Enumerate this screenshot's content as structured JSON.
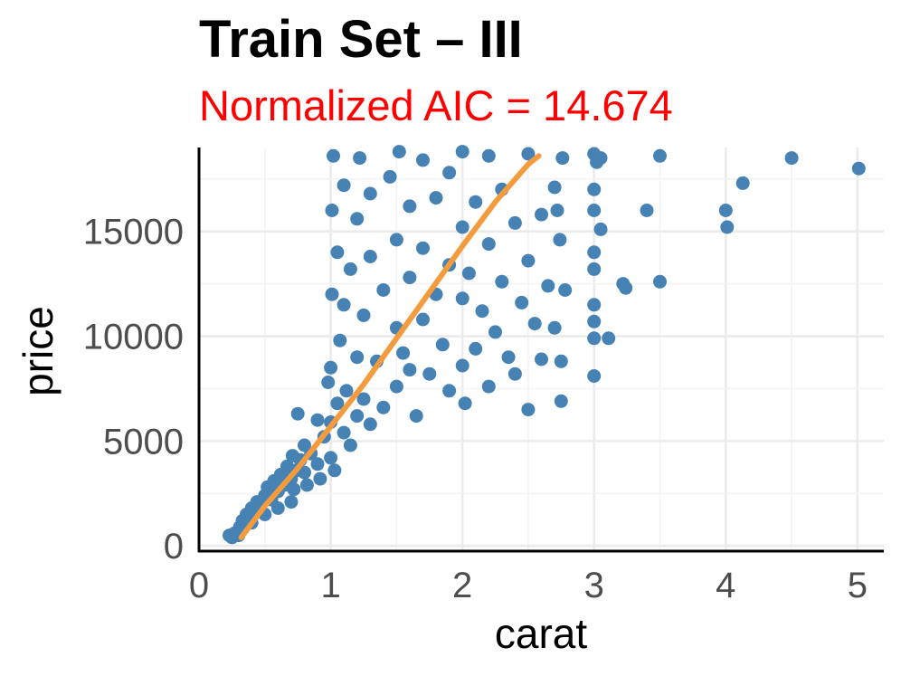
{
  "chart_data": {
    "type": "scatter",
    "title": "Train Set – III",
    "subtitle": "Normalized AIC = 14.674",
    "xlabel": "carat",
    "ylabel": "price",
    "xlim": [
      0,
      5.2
    ],
    "ylim": [
      -250,
      19000
    ],
    "x_ticks": [
      0,
      1,
      2,
      3,
      4,
      5
    ],
    "x_tick_labels": [
      "0",
      "1",
      "2",
      "3",
      "4",
      "5"
    ],
    "y_ticks": [
      0,
      5000,
      10000,
      15000
    ],
    "y_tick_labels": [
      "0",
      "5000",
      "10000",
      "15000"
    ],
    "grid": true,
    "legend": "none",
    "colors": {
      "points": "#4682b4",
      "fit_line": "#f39b3d",
      "subtitle": "#ff0000"
    },
    "fit_line": {
      "x": [
        0.32,
        0.5,
        0.75,
        1.0,
        1.25,
        1.5,
        1.75,
        2.0,
        2.25,
        2.5,
        2.58
      ],
      "y": [
        400,
        1900,
        3700,
        5700,
        7700,
        9900,
        12100,
        14300,
        16400,
        18200,
        18600
      ]
    },
    "points": [
      [
        0.23,
        500
      ],
      [
        0.25,
        400
      ],
      [
        0.27,
        600
      ],
      [
        0.3,
        700
      ],
      [
        0.3,
        500
      ],
      [
        0.31,
        900
      ],
      [
        0.32,
        800
      ],
      [
        0.33,
        1200
      ],
      [
        0.35,
        1000
      ],
      [
        0.36,
        1500
      ],
      [
        0.38,
        1300
      ],
      [
        0.4,
        1100
      ],
      [
        0.4,
        1800
      ],
      [
        0.42,
        1600
      ],
      [
        0.44,
        2100
      ],
      [
        0.46,
        1900
      ],
      [
        0.5,
        2400
      ],
      [
        0.5,
        1500
      ],
      [
        0.52,
        2800
      ],
      [
        0.55,
        2200
      ],
      [
        0.57,
        3100
      ],
      [
        0.6,
        2600
      ],
      [
        0.6,
        1800
      ],
      [
        0.62,
        3400
      ],
      [
        0.65,
        2900
      ],
      [
        0.67,
        3800
      ],
      [
        0.7,
        3200
      ],
      [
        0.7,
        2100
      ],
      [
        0.71,
        4300
      ],
      [
        0.72,
        2700
      ],
      [
        0.74,
        3600
      ],
      [
        0.75,
        6300
      ],
      [
        0.77,
        4100
      ],
      [
        0.8,
        3500
      ],
      [
        0.8,
        4800
      ],
      [
        0.82,
        2900
      ],
      [
        0.85,
        4400
      ],
      [
        0.9,
        3900
      ],
      [
        0.9,
        6000
      ],
      [
        0.92,
        3200
      ],
      [
        0.95,
        5200
      ],
      [
        0.98,
        7800
      ],
      [
        1.0,
        4200
      ],
      [
        1.0,
        5900
      ],
      [
        1.0,
        8500
      ],
      [
        1.01,
        12000
      ],
      [
        1.01,
        16000
      ],
      [
        1.02,
        18600
      ],
      [
        1.03,
        3600
      ],
      [
        1.05,
        6800
      ],
      [
        1.05,
        14000
      ],
      [
        1.07,
        9800
      ],
      [
        1.1,
        5400
      ],
      [
        1.1,
        11500
      ],
      [
        1.1,
        17200
      ],
      [
        1.12,
        7400
      ],
      [
        1.15,
        4800
      ],
      [
        1.15,
        13200
      ],
      [
        1.2,
        6200
      ],
      [
        1.2,
        9000
      ],
      [
        1.2,
        15600
      ],
      [
        1.22,
        18500
      ],
      [
        1.25,
        11000
      ],
      [
        1.25,
        7000
      ],
      [
        1.3,
        5800
      ],
      [
        1.3,
        13800
      ],
      [
        1.3,
        16800
      ],
      [
        1.35,
        8800
      ],
      [
        1.4,
        6600
      ],
      [
        1.4,
        12200
      ],
      [
        1.45,
        17600
      ],
      [
        1.5,
        7600
      ],
      [
        1.5,
        10400
      ],
      [
        1.5,
        14600
      ],
      [
        1.52,
        18800
      ],
      [
        1.55,
        9200
      ],
      [
        1.6,
        8400
      ],
      [
        1.6,
        12800
      ],
      [
        1.6,
        16200
      ],
      [
        1.65,
        6200
      ],
      [
        1.7,
        10800
      ],
      [
        1.7,
        14200
      ],
      [
        1.7,
        18400
      ],
      [
        1.75,
        8200
      ],
      [
        1.8,
        12000
      ],
      [
        1.8,
        16600
      ],
      [
        1.85,
        9600
      ],
      [
        1.9,
        7400
      ],
      [
        1.9,
        13400
      ],
      [
        1.9,
        17800
      ],
      [
        2.0,
        8600
      ],
      [
        2.0,
        11800
      ],
      [
        2.0,
        15200
      ],
      [
        2.0,
        18800
      ],
      [
        2.02,
        6800
      ],
      [
        2.05,
        13000
      ],
      [
        2.1,
        9400
      ],
      [
        2.1,
        16400
      ],
      [
        2.15,
        11200
      ],
      [
        2.2,
        7600
      ],
      [
        2.2,
        14400
      ],
      [
        2.2,
        18600
      ],
      [
        2.25,
        10200
      ],
      [
        2.3,
        12600
      ],
      [
        2.3,
        17000
      ],
      [
        2.35,
        9000
      ],
      [
        2.4,
        15400
      ],
      [
        2.4,
        8200
      ],
      [
        2.45,
        11600
      ],
      [
        2.5,
        18700
      ],
      [
        2.5,
        13600
      ],
      [
        2.5,
        6500
      ],
      [
        2.55,
        10600
      ],
      [
        2.6,
        15800
      ],
      [
        2.6,
        8900
      ],
      [
        2.65,
        12400
      ],
      [
        2.7,
        17100
      ],
      [
        2.7,
        10400
      ],
      [
        2.75,
        8800
      ],
      [
        2.75,
        6900
      ],
      [
        2.72,
        16000
      ],
      [
        2.74,
        14600
      ],
      [
        2.78,
        12200
      ],
      [
        2.76,
        18500
      ],
      [
        3.0,
        18700
      ],
      [
        3.0,
        17000
      ],
      [
        3.0,
        16000
      ],
      [
        3.0,
        14000
      ],
      [
        3.0,
        13200
      ],
      [
        3.0,
        11500
      ],
      [
        3.0,
        10700
      ],
      [
        3.0,
        9900
      ],
      [
        3.0,
        8100
      ],
      [
        3.02,
        18300
      ],
      [
        3.05,
        15100
      ],
      [
        3.05,
        18500
      ],
      [
        3.11,
        9900
      ],
      [
        3.22,
        12500
      ],
      [
        3.24,
        12300
      ],
      [
        3.4,
        16000
      ],
      [
        3.5,
        18600
      ],
      [
        3.5,
        12600
      ],
      [
        4.0,
        16000
      ],
      [
        4.01,
        15200
      ],
      [
        4.13,
        17300
      ],
      [
        4.5,
        18500
      ],
      [
        5.01,
        18000
      ]
    ]
  }
}
